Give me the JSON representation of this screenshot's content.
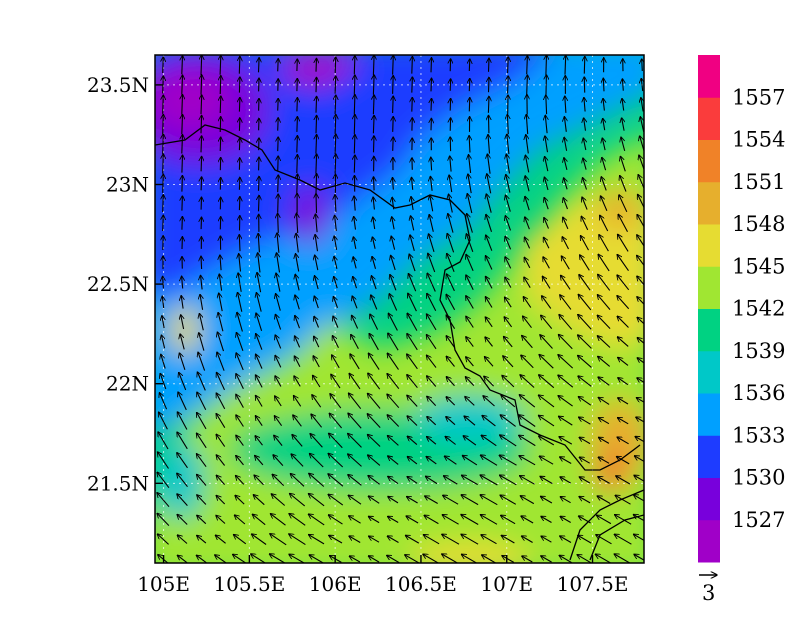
{
  "chart_data": {
    "type": "heatmap",
    "title": "",
    "xlabel": "",
    "ylabel": "",
    "xlim": [
      104.95,
      107.8
    ],
    "ylim": [
      21.1,
      23.65
    ],
    "x_ticks": [
      {
        "value": 105.0,
        "label": "105E"
      },
      {
        "value": 105.5,
        "label": "105.5E"
      },
      {
        "value": 106.0,
        "label": "106E"
      },
      {
        "value": 106.5,
        "label": "106.5E"
      },
      {
        "value": 107.0,
        "label": "107E"
      },
      {
        "value": 107.5,
        "label": "107.5E"
      }
    ],
    "y_ticks": [
      {
        "value": 21.5,
        "label": "21.5N"
      },
      {
        "value": 22.0,
        "label": "22N"
      },
      {
        "value": 22.5,
        "label": "22.5N"
      },
      {
        "value": 23.0,
        "label": "23N"
      },
      {
        "value": 23.5,
        "label": "23.5N"
      }
    ],
    "grid": true,
    "colorbar": {
      "position": "right",
      "levels": [
        1527,
        1530,
        1533,
        1536,
        1539,
        1542,
        1545,
        1548,
        1551,
        1554,
        1557
      ],
      "level_labels": [
        "1527",
        "1530",
        "1533",
        "1536",
        "1539",
        "1542",
        "1545",
        "1548",
        "1551",
        "1554",
        "1557"
      ],
      "colors": [
        "#a000c8",
        "#7800dc",
        "#1e3cff",
        "#00a0ff",
        "#00c8c8",
        "#00d282",
        "#a0e632",
        "#e6dc32",
        "#e6af2d",
        "#f08228",
        "#fa3c3c",
        "#f00082"
      ]
    },
    "vector_reference": {
      "label": "3",
      "magnitude": 3
    },
    "wind_field": {
      "dominant_direction_north": "toward north (southerly wind)",
      "dominant_direction_south": "toward north-west (south-easterly wind)"
    },
    "anomalies": [
      {
        "lon": 105.2,
        "lat": 23.35,
        "level": 1527,
        "note": "minimum near north-west"
      },
      {
        "lon": 105.85,
        "lat": 22.8,
        "level": 1530
      },
      {
        "lon": 107.55,
        "lat": 21.45,
        "level": 1554,
        "note": "maximum near south-east"
      }
    ]
  }
}
